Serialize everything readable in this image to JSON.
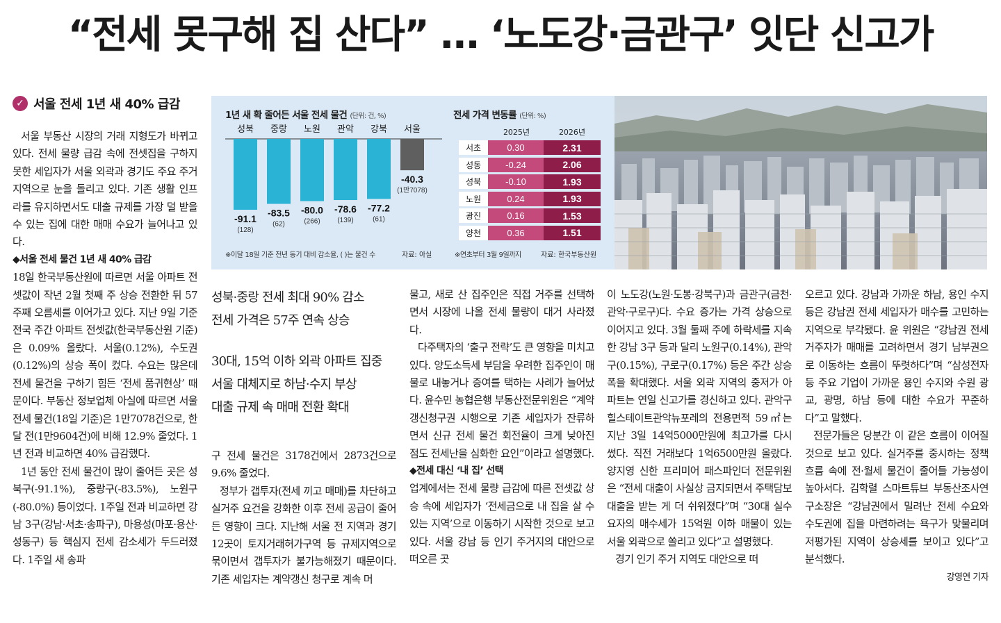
{
  "headline": "“전세 못구해 집 산다” … ‘노도강·금관구’ 잇단 신고가",
  "sub_head": "서울 전세 1년 새 40% 급감",
  "infographic": {
    "chart1_title": "1년 새 확 줄어든 서울 전세 물건",
    "chart1_unit": "(단위: 건, %)",
    "chart1_note": "※이달 18일 기준 전년 동기 대비 감소율, ( )는 물건 수",
    "chart1_source": "자료: 아실",
    "chart2_title": "전세 가격 변동률",
    "chart2_unit": "(단위: %)",
    "chart2_col1": "2025년",
    "chart2_col2": "2026년",
    "chart2_note": "※연초부터 3월 9일까지",
    "chart2_source": "자료: 한국부동산원"
  },
  "chart_data": [
    {
      "type": "bar",
      "title": "1년 새 확 줄어든 서울 전세 물건",
      "categories": [
        "성북",
        "중랑",
        "노원",
        "관악",
        "강북",
        "서울"
      ],
      "values": [
        -91.1,
        -83.5,
        -80.0,
        -78.6,
        -77.2,
        -40.3
      ],
      "value_labels": [
        "-91.1",
        "-83.5",
        "-80.0",
        "-78.6",
        "-77.2",
        "-40.3"
      ],
      "counts": [
        "(128)",
        "(62)",
        "(266)",
        "(139)",
        "(61)",
        "(1만7078)"
      ],
      "colors": [
        "#2bb3d6",
        "#2bb3d6",
        "#2bb3d6",
        "#2bb3d6",
        "#2bb3d6",
        "#5f5f5f"
      ],
      "ylim": [
        -100,
        0
      ]
    },
    {
      "type": "table",
      "title": "전세 가격 변동률",
      "columns": [
        "2025년",
        "2026년"
      ],
      "rows": [
        {
          "name": "서초",
          "v2025": "0.30",
          "v2026": "2.31"
        },
        {
          "name": "성동",
          "v2025": "-0.24",
          "v2026": "2.06"
        },
        {
          "name": "성북",
          "v2025": "-0.10",
          "v2026": "1.93"
        },
        {
          "name": "노원",
          "v2025": "0.24",
          "v2026": "1.93"
        },
        {
          "name": "광진",
          "v2025": "0.16",
          "v2026": "1.53"
        },
        {
          "name": "양천",
          "v2025": "0.36",
          "v2026": "1.51"
        }
      ]
    }
  ],
  "decks": {
    "group1": [
      "성북·중랑 전세 최대 90% 감소",
      "전세 가격은 57주 연속 상승"
    ],
    "group2": [
      "30대, 15억 이하 외곽 아파트 집중",
      "서울 대체지로 하남·수지 부상",
      "대출 규제 속 매매 전환 확대"
    ]
  },
  "col1": {
    "p1": "서울 부동산 시장의 거래 지형도가 바뀌고 있다. 전세 물량 급감 속에 전셋집을 구하지 못한 세입자가 서울 외곽과 경기도 주요 주거 지역으로 눈을 돌리고 있다. 기존 생활 인프라를 유지하면서도 대출 규제를 가장 덜 받을 수 있는 집에 대한 매매 수요가 늘어나고 있다.",
    "marker1": "◆서울 전세 물건 1년 새 40% 급감",
    "p2": "18일 한국부동산원에 따르면 서울 아파트 전셋값이 작년 2월 첫째 주 상승 전환한 뒤 57주째 오름세를 이어가고 있다. 지난 9일 기준 전국 주간 아파트 전셋값(한국부동산원 기준)은 0.09% 올랐다. 서울(0.12%), 수도권(0.12%)의 상승 폭이 컸다. 수요는 많은데 전세 물건을 구하기 힘든 ‘전세 품귀현상’ 때문이다. 부동산 정보업체 아실에 따르면 서울 전세 물건(18일 기준)은 1만7078건으로, 한 달 전(1만9604건)에 비해 12.9% 줄었다. 1년 전과 비교하면 40% 급감했다.",
    "p3": "1년 동안 전세 물건이 많이 줄어든 곳은 성북구(-91.1%), 중랑구(-83.5%), 노원구(-80.0%) 등이었다. 1주일 전과 비교하면 강남 3구(강남·서초·송파구), 마용성(마포·용산·성동구) 등 핵심지 전세 감소세가 두드러졌다. 1주일 새 송파"
  },
  "col2": {
    "p1": "구 전세 물건은 3178건에서 2873건으로 9.6% 줄었다.",
    "p2": "정부가 갭투자(전세 끼고 매매)를 차단하고 실거주 요건을 강화한 이후 전세 공급이 줄어든 영향이 크다. 지난해 서울 전 지역과 경기 12곳이 토지거래허가구역 등 규제지역으로 묶이면서 갭투자가 불가능해졌기 때문이다. 기존 세입자는 계약갱신 청구로 계속 머"
  },
  "col3": {
    "p1": "물고, 새로 산 집주인은 직접 거주를 선택하면서 시장에 나올 전세 물량이 대거 사라졌다.",
    "p2": "다주택자의 ‘출구 전략’도 큰 영향을 미치고 있다. 양도소득세 부담을 우려한 집주인이 매물로 내놓거나 증여를 택하는 사례가 늘어났다. 윤수민 농협은행 부동산전문위원은 “계약갱신청구권 시행으로 기존 세입자가 잔류하면서 신규 전세 물건 회전율이 크게 낮아진 점도 전세난을 심화한 요인”이라고 설명했다.",
    "marker": "◆전세 대신 ‘내 집’ 선택",
    "p3": "업계에서는 전세 물량 급감에 따른 전셋값 상승 속에 세입자가 ‘전세금으로 내 집을 살 수 있는 지역’으로 이동하기 시작한 것으로 보고 있다. 서울 강남 등 인기 주거지의 대안으로 떠오른 곳"
  },
  "col4": {
    "p1": "이 노도강(노원·도봉·강북구)과 금관구(금천·관악·구로구)다. 수요 증가는 가격 상승으로 이어지고 있다. 3월 둘째 주에 하락세를 지속한 강남 3구 등과 달리 노원구(0.14%), 관악구(0.15%), 구로구(0.17%) 등은 주간 상승 폭을 확대했다. 서울 외곽 지역의 중저가 아파트는 연일 신고가를 경신하고 있다. 관악구 힐스테이트관악뉴포레의 전용면적 59㎡는 지난 3일 14억5000만원에 최고가를 다시 썼다. 직전 거래보다 1억6500만원 올랐다. 양지영 신한 프리미어 패스파인더 전문위원은 “전세 대출이 사실상 금지되면서 주택담보대출을 받는 게 더 쉬워졌다”며 “30대 실수요자의 매수세가 15억원 이하 매물이 있는 서울 외곽으로 쏠리고 있다”고 설명했다.",
    "p2": "경기 인기 주거 지역도 대안으로 떠"
  },
  "col5": {
    "p1": "오르고 있다. 강남과 가까운 하남, 용인 수지 등은 강남권 전세 세입자가 매수를 고민하는 지역으로 부각됐다. 윤 위원은 “강남권 전세 거주자가 매매를 고려하면서 경기 남부권으로 이동하는 흐름이 뚜렷하다”며 “삼성전자 등 주요 기업이 가까운 용인 수지와 수원 광교, 광명, 하남 등에 대한 수요가 꾸준하다”고 말했다.",
    "p2": "전문가들은 당분간 이 같은 흐름이 이어질 것으로 보고 있다. 실거주를 중시하는 정책 흐름 속에 전·월세 물건이 줄어들 가능성이 높아서다. 김학렬 스마트튜브 부동산조사연구소장은 “강남권에서 밀려난 전세 수요와 수도권에 집을 마련하려는 욕구가 맞물리며 저평가된 지역이 상승세를 보이고 있다”고 분석했다.",
    "byline": "강영연 기자"
  }
}
